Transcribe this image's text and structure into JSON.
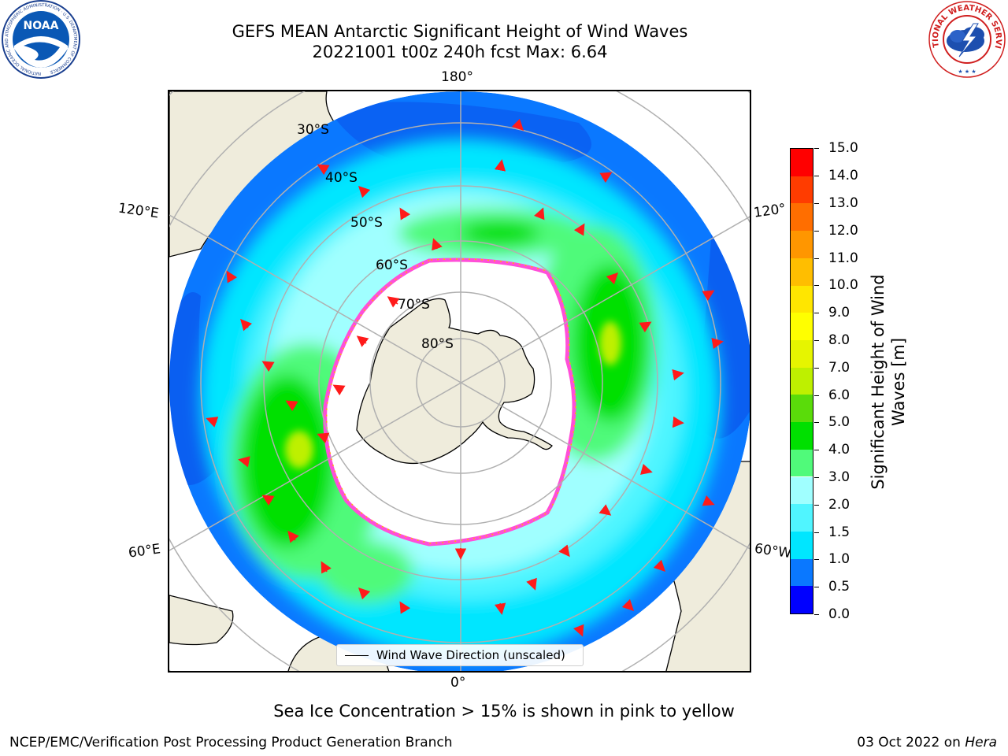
{
  "title": {
    "line1": "GEFS MEAN Antarctic Significant Height of Wind Waves",
    "line2": "20221001 t00z 240h fcst   Max: 6.64"
  },
  "map": {
    "projection": "south polar stereographic",
    "longitude_labels": {
      "top": "180°",
      "bottom": "0°",
      "upper_left": "120°E",
      "lower_left": "60°E",
      "upper_right": "120°",
      "lower_right": "60°W"
    },
    "latitude_labels": [
      "30°S",
      "40°S",
      "50°S",
      "60°S",
      "70°S",
      "80°S"
    ],
    "legend": {
      "label": "Wind Wave Direction (unscaled)"
    },
    "colors": {
      "land": "#efecdc",
      "ice": "#ffffff",
      "vectors": "#ff1a1a",
      "grid": "#b0b0b0"
    }
  },
  "colorbar": {
    "title_line1": "Significant Height of Wind",
    "title_line2": "Waves [m]",
    "ticks": [
      "0.0",
      "0.5",
      "1.0",
      "1.5",
      "2.0",
      "3.0",
      "4.0",
      "5.0",
      "6.0",
      "7.0",
      "8.0",
      "9.0",
      "10.0",
      "11.0",
      "12.0",
      "13.0",
      "14.0",
      "15.0"
    ],
    "colors": [
      "#0000ff",
      "#0a78ff",
      "#00e6ff",
      "#50f5ff",
      "#a0ffff",
      "#50fa7a",
      "#00e000",
      "#5adc0a",
      "#bef000",
      "#e6f500",
      "#ffff00",
      "#ffe600",
      "#ffbe00",
      "#ff9600",
      "#ff6e00",
      "#ff3c00",
      "#ff0000"
    ]
  },
  "caption": "Sea Ice Concentration > 15% is shown in pink to yellow",
  "footer": {
    "left": "NCEP/EMC/Verification Post Processing Product Generation Branch",
    "right_prefix": "03 Oct 2022 on ",
    "right_machine": "Hera"
  },
  "logos": {
    "noaa": {
      "text": "NOAA",
      "ring_text": "NATIONAL OCEANIC AND ATMOSPHERIC ADMINISTRATION · U.S. DEPARTMENT OF COMMERCE"
    },
    "nws": {
      "ring_text": "NATIONAL WEATHER SERVICE"
    }
  }
}
